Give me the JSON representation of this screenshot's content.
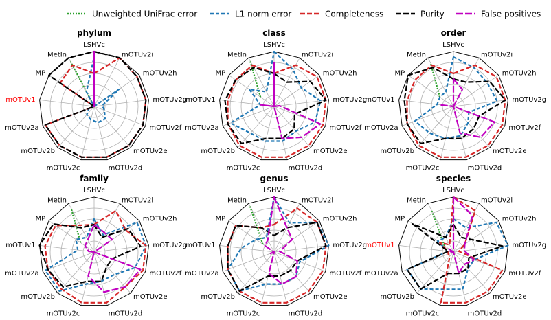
{
  "legend": [
    {
      "name": "Unweighted UniFrac error",
      "color": "#2ca02c",
      "dash": "2,2"
    },
    {
      "name": "L1 norm error",
      "color": "#1f77b4",
      "dash": "5,3"
    },
    {
      "name": "Completeness",
      "color": "#d62728",
      "dash": "7,3"
    },
    {
      "name": "Purity",
      "color": "#000000",
      "dash": "8,3"
    },
    {
      "name": "False positives",
      "color": "#c000c0",
      "dash": "10,3"
    }
  ],
  "colors": {
    "axis_grid": "#b0b0b0",
    "outline": "#000000",
    "highlight_label": "#ff0000"
  },
  "chart_data": [
    {
      "type": "radar",
      "title": "phylum",
      "categories": [
        "LSHVc",
        "mOTUv2i",
        "mOTUv2h",
        "mOTUv2g",
        "mOTUv2f",
        "mOTUv2e",
        "mOTUv2d",
        "mOTUv2c",
        "mOTUv2b",
        "mOTUv2a",
        "mOTUv1",
        "MP",
        "MetIn"
      ],
      "highlight": [
        "mOTUv1"
      ],
      "series": [
        {
          "name": "Unweighted UniFrac error",
          "values": [
            null,
            null,
            null,
            null,
            null,
            null,
            null,
            null,
            null,
            null,
            null,
            0,
            0.95
          ]
        },
        {
          "name": "L1 norm error",
          "values": [
            0.9,
            0,
            0.55,
            0.15,
            0.2,
            0.3,
            0.3,
            0.25,
            0.2,
            0.1,
            0,
            0,
            0.3
          ]
        },
        {
          "name": "Completeness",
          "values": [
            0.6,
            1.0,
            0.95,
            0.95,
            0.95,
            0.95,
            0.95,
            0.95,
            0.95,
            0.95,
            0,
            0.75,
            0.85
          ]
        },
        {
          "name": "Purity",
          "values": [
            1.0,
            1.0,
            0.95,
            0.95,
            0.95,
            0.95,
            0.95,
            0.95,
            0.95,
            0.95,
            0,
            1.0,
            1.0
          ]
        },
        {
          "name": "False positives",
          "values": [
            1.0,
            0,
            0,
            0,
            0,
            0,
            0,
            0,
            0,
            0,
            0,
            0,
            0
          ]
        }
      ]
    },
    {
      "type": "radar",
      "title": "class",
      "categories": [
        "LSHVc",
        "mOTUv2i",
        "mOTUv2h",
        "mOTUv2g",
        "mOTUv2f",
        "mOTUv2e",
        "mOTUv2d",
        "mOTUv2c",
        "mOTUv2b",
        "mOTUv2a",
        "mOTUv1",
        "MP",
        "MetIn"
      ],
      "highlight": [],
      "series": [
        {
          "name": "Unweighted UniFrac error",
          "values": [
            null,
            null,
            null,
            null,
            null,
            null,
            null,
            null,
            null,
            null,
            null,
            0.3,
            0.95
          ]
        },
        {
          "name": "L1 norm error",
          "values": [
            1.0,
            0.75,
            0.6,
            0.85,
            0.8,
            0.6,
            0.65,
            0.65,
            0.65,
            0.85,
            0.25,
            0.55,
            0.3
          ]
        },
        {
          "name": "Completeness",
          "values": [
            0.6,
            0.85,
            0.95,
            0.95,
            0.95,
            0.95,
            0.95,
            0.95,
            0.95,
            0.9,
            0.85,
            0.85,
            0.85
          ]
        },
        {
          "name": "Purity",
          "values": [
            0.6,
            0.5,
            0.8,
            0.95,
            0.4,
            0.55,
            0.6,
            0.6,
            0.9,
            0.9,
            0.9,
            0.85,
            0.8
          ]
        },
        {
          "name": "False positives",
          "values": [
            0.8,
            0,
            0,
            0.1,
            0.9,
            0.75,
            0.6,
            0,
            0,
            0,
            0.25,
            0,
            0
          ]
        }
      ]
    },
    {
      "type": "radar",
      "title": "order",
      "categories": [
        "LSHVc",
        "mOTUv2i",
        "mOTUv2h",
        "mOTUv2g",
        "mOTUv2f",
        "mOTUv2e",
        "mOTUv2d",
        "mOTUv2c",
        "mOTUv2b",
        "mOTUv2a",
        "mOTUv1",
        "MP",
        "MetIn"
      ],
      "highlight": [],
      "series": [
        {
          "name": "Unweighted UniFrac error",
          "values": [
            null,
            null,
            null,
            null,
            null,
            null,
            null,
            null,
            null,
            null,
            null,
            0.3,
            0.9
          ]
        },
        {
          "name": "L1 norm error",
          "values": [
            0.9,
            0.8,
            0.75,
            0.8,
            0.3,
            0.4,
            0.55,
            0.6,
            0.65,
            0.75,
            0.3,
            0.3,
            0.3
          ]
        },
        {
          "name": "Completeness",
          "values": [
            0.6,
            0.85,
            0.95,
            0.95,
            0.95,
            0.95,
            0.95,
            0.95,
            0.95,
            0.9,
            0.85,
            0.85,
            0.85
          ]
        },
        {
          "name": "Purity",
          "values": [
            0.5,
            0.5,
            0.8,
            0.95,
            0.5,
            0.55,
            0.6,
            0.6,
            0.9,
            0.9,
            0.9,
            1.0,
            0.8
          ]
        },
        {
          "name": "False positives",
          "values": [
            0.5,
            0.35,
            0,
            0,
            0.8,
            0.75,
            0.5,
            0,
            0,
            0,
            0.25,
            0,
            0
          ]
        }
      ]
    },
    {
      "type": "radar",
      "title": "family",
      "categories": [
        "LSHVc",
        "mOTUv2i",
        "mOTUv2h",
        "mOTUv2g",
        "mOTUv2f",
        "mOTUv2e",
        "mOTUv2d",
        "mOTUv2c",
        "mOTUv2b",
        "mOTUv2a",
        "mOTUv1",
        "MP",
        "MetIn"
      ],
      "highlight": [],
      "series": [
        {
          "name": "Unweighted UniFrac error",
          "values": [
            null,
            null,
            null,
            null,
            null,
            null,
            null,
            null,
            null,
            null,
            null,
            0.3,
            0.9
          ]
        },
        {
          "name": "L1 norm error",
          "values": [
            0.6,
            0.35,
            0.95,
            0.95,
            0.8,
            0.55,
            0.55,
            0.6,
            0.95,
            0.95,
            0.3,
            0.4,
            0.3
          ]
        },
        {
          "name": "Completeness",
          "values": [
            0.5,
            0.85,
            0.7,
            0.95,
            0.95,
            0.85,
            0.95,
            0.95,
            0.9,
            0.9,
            0.9,
            0.85,
            0.55
          ]
        },
        {
          "name": "Purity",
          "values": [
            0.5,
            0.3,
            0.75,
            0.85,
            0.35,
            0.35,
            0.55,
            0.55,
            0.85,
            0.9,
            1.0,
            0.9,
            0.5
          ]
        },
        {
          "name": "False positives",
          "values": [
            0.5,
            0.4,
            0.4,
            0,
            0.9,
            0.85,
            0.75,
            0.45,
            0,
            0,
            0.1,
            0.2,
            0.25
          ]
        }
      ]
    },
    {
      "type": "radar",
      "title": "genus",
      "categories": [
        "LSHVc",
        "mOTUv2i",
        "mOTUv2h",
        "mOTUv2g",
        "mOTUv2f",
        "mOTUv2e",
        "mOTUv2d",
        "mOTUv2c",
        "mOTUv2b",
        "mOTUv2a",
        "mOTUv1",
        "MP",
        "MetIn"
      ],
      "highlight": [],
      "series": [
        {
          "name": "Unweighted UniFrac error",
          "values": [
            null,
            null,
            null,
            null,
            null,
            null,
            null,
            null,
            null,
            null,
            null,
            0.25,
            0.95
          ]
        },
        {
          "name": "L1 norm error",
          "values": [
            1.0,
            0.6,
            0.95,
            1.0,
            0.5,
            0.6,
            0.6,
            0.6,
            0.95,
            0.9,
            0.6,
            0.4,
            0.3
          ]
        },
        {
          "name": "Completeness",
          "values": [
            0.5,
            0.9,
            0.95,
            0.95,
            0.95,
            0.95,
            0.95,
            0.95,
            0.95,
            0.9,
            0.85,
            0.85,
            0.5
          ]
        },
        {
          "name": "Purity",
          "values": [
            0.3,
            0.5,
            0.95,
            0.95,
            0.45,
            0.45,
            0.45,
            0.45,
            0.95,
            0.9,
            0.85,
            0.85,
            0.5
          ]
        },
        {
          "name": "False positives",
          "values": [
            1.0,
            0.5,
            0.4,
            0.1,
            0.45,
            0.6,
            0.6,
            0.4,
            0,
            0.1,
            0,
            0.2,
            0.25
          ]
        }
      ]
    },
    {
      "type": "radar",
      "title": "species",
      "categories": [
        "LSHVc",
        "mOTUv2i",
        "mOTUv2h",
        "mOTUv2g",
        "mOTUv2f",
        "mOTUv2e",
        "mOTUv2d",
        "mOTUv2c",
        "mOTUv2b",
        "mOTUv2a",
        "mOTUv1",
        "MP",
        "MetIn"
      ],
      "highlight": [
        "mOTUv1"
      ],
      "series": [
        {
          "name": "Unweighted UniFrac error",
          "values": [
            null,
            null,
            null,
            null,
            null,
            null,
            null,
            null,
            null,
            null,
            null,
            0.2,
            0.85
          ]
        },
        {
          "name": "L1 norm error",
          "values": [
            0.6,
            0.5,
            0.95,
            1.0,
            0.4,
            0.4,
            0.7,
            0.7,
            0.9,
            0.9,
            0.1,
            0.35,
            0.3
          ]
        },
        {
          "name": "Completeness",
          "values": [
            1.0,
            0.85,
            0.25,
            0.1,
            0.95,
            0.95,
            0.95,
            0.95,
            0.1,
            0.1,
            0.1,
            0.3,
            0.15
          ]
        },
        {
          "name": "Purity",
          "values": [
            0.5,
            0.3,
            0.4,
            0.9,
            0.3,
            0.4,
            0.4,
            0.4,
            0.9,
            0.9,
            0.1,
            0.9,
            0.3
          ]
        },
        {
          "name": "False positives",
          "values": [
            1.0,
            0.75,
            0.25,
            0.2,
            0.4,
            0.3,
            0.4,
            0,
            0,
            0,
            0.05,
            0.1,
            0
          ]
        }
      ]
    }
  ]
}
